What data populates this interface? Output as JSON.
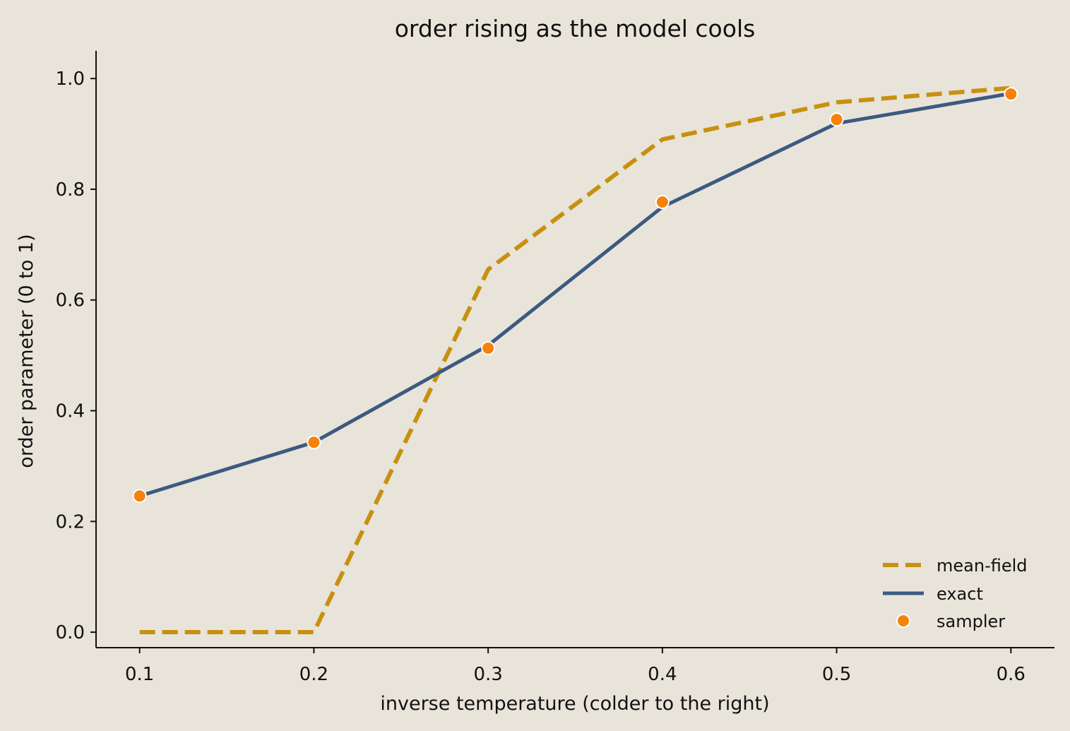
{
  "chart_data": {
    "type": "line",
    "title": "order rising as the model cools",
    "xlabel": "inverse temperature  (colder to the right)",
    "ylabel": "order parameter  (0 to 1)",
    "x": [
      0.1,
      0.2,
      0.3,
      0.4,
      0.5,
      0.6
    ],
    "xlim": [
      0.075,
      0.625
    ],
    "ylim": [
      -0.028,
      1.05
    ],
    "x_ticks": [
      "0.1",
      "0.2",
      "0.3",
      "0.4",
      "0.5",
      "0.6"
    ],
    "y_ticks": [
      "0.0",
      "0.2",
      "0.4",
      "0.6",
      "0.8",
      "1.0"
    ],
    "grid": false,
    "legend_position": "lower-right",
    "series": [
      {
        "name": "mean-field",
        "style": "dashed",
        "color": "#c8900f",
        "values": [
          0.0,
          0.0,
          0.655,
          0.89,
          0.957,
          0.983
        ]
      },
      {
        "name": "exact",
        "style": "solid",
        "color": "#3c5a80",
        "values": [
          0.246,
          0.343,
          0.518,
          0.768,
          0.919,
          0.973
        ]
      },
      {
        "name": "sampler",
        "style": "markers",
        "color": "#f5820a",
        "values": [
          0.246,
          0.343,
          0.513,
          0.777,
          0.926,
          0.972
        ]
      }
    ]
  }
}
